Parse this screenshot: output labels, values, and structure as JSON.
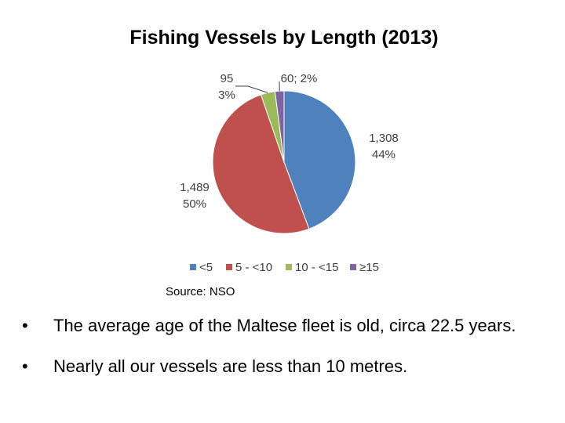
{
  "chart_data": {
    "type": "pie",
    "title": "Fishing Vessels by Length (2013)",
    "categories": [
      "<5",
      "5 - <10",
      "10 - <15",
      "≥15"
    ],
    "values": [
      1308,
      1489,
      95,
      60
    ],
    "percent_labels": [
      "44%",
      "50%",
      "3%",
      "2%"
    ],
    "data_labels": [
      {
        "lines": [
          "1,308",
          "44%"
        ]
      },
      {
        "lines": [
          "1,489",
          "50%"
        ]
      },
      {
        "lines": [
          "95",
          "3%"
        ]
      },
      {
        "lines": [
          "60; 2%"
        ]
      }
    ],
    "colors": [
      "#4F81BD",
      "#C0504D",
      "#9BBB59",
      "#8064A2"
    ],
    "legend_position": "bottom"
  },
  "source": "Source: NSO",
  "bullets": [
    {
      "marker": "•",
      "text": "The average age of the Maltese fleet is old, circa 22.5 years."
    },
    {
      "marker": "•",
      "text": "Nearly all our vessels are less than 10 metres."
    }
  ]
}
